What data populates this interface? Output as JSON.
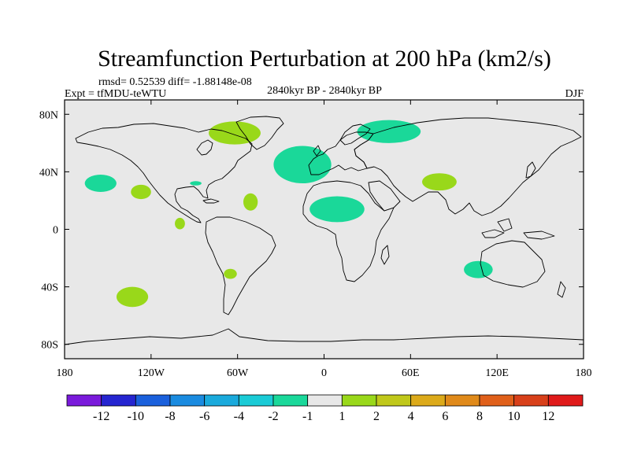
{
  "chart_data": {
    "type": "heatmap",
    "title": "Streamfunction Perturbation at 200 hPa (km2/s)",
    "stats_text": "rmsd= 0.52539 diff= -1.88148e-08",
    "experiment": "Expt = tfMDU-teWTU",
    "period": "2840kyr BP - 2840kyr BP",
    "season": "DJF",
    "xlim": [
      -180,
      180
    ],
    "ylim": [
      -90,
      90
    ],
    "x_ticks": [
      {
        "value": -180,
        "label": "180"
      },
      {
        "value": -120,
        "label": "120W"
      },
      {
        "value": -60,
        "label": "60W"
      },
      {
        "value": 0,
        "label": "0"
      },
      {
        "value": 60,
        "label": "60E"
      },
      {
        "value": 120,
        "label": "120E"
      },
      {
        "value": 180,
        "label": "180"
      }
    ],
    "y_ticks": [
      {
        "value": 80,
        "label": "80N"
      },
      {
        "value": 40,
        "label": "40N"
      },
      {
        "value": 0,
        "label": "0"
      },
      {
        "value": -40,
        "label": "40S"
      },
      {
        "value": -80,
        "label": "80S"
      }
    ],
    "background_value_range": [
      -1,
      1
    ],
    "regions": [
      {
        "lon": -62,
        "lat": 67,
        "rlon": 18,
        "rlat": 8,
        "bin": "1 to 2",
        "color": "#99d81a"
      },
      {
        "lon": -155,
        "lat": 32,
        "rlon": 11,
        "rlat": 6,
        "bin": "-2 to -1",
        "color": "#1ad899"
      },
      {
        "lon": -127,
        "lat": 26,
        "rlon": 7,
        "rlat": 5,
        "bin": "1 to 2",
        "color": "#99d81a"
      },
      {
        "lon": -89,
        "lat": 32,
        "rlon": 4,
        "rlat": 1.5,
        "bin": "-2 to -1",
        "color": "#1ad899"
      },
      {
        "lon": -51,
        "lat": 19,
        "rlon": 5,
        "rlat": 6,
        "bin": "1 to 2",
        "color": "#99d81a"
      },
      {
        "lon": -100,
        "lat": 4,
        "rlon": 3.5,
        "rlat": 4,
        "bin": "1 to 2",
        "color": "#99d81a"
      },
      {
        "lon": -65,
        "lat": -31,
        "rlon": 4.5,
        "rlat": 3.5,
        "bin": "1 to 2",
        "color": "#99d81a"
      },
      {
        "lon": -133,
        "lat": -47,
        "rlon": 11,
        "rlat": 7,
        "bin": "1 to 2",
        "color": "#99d81a"
      },
      {
        "lon": -15,
        "lat": 45,
        "rlon": 20,
        "rlat": 13,
        "bin": "-2 to -1",
        "color": "#1ad899"
      },
      {
        "lon": 45,
        "lat": 68,
        "rlon": 22,
        "rlat": 8,
        "bin": "-2 to -1",
        "color": "#1ad899"
      },
      {
        "lon": 9,
        "lat": 14,
        "rlon": 19,
        "rlat": 9,
        "bin": "-2 to -1",
        "color": "#1ad899"
      },
      {
        "lon": 80,
        "lat": 33,
        "rlon": 12,
        "rlat": 6,
        "bin": "1 to 2",
        "color": "#99d81a"
      },
      {
        "lon": 107,
        "lat": -28,
        "rlon": 10,
        "rlat": 6,
        "bin": "-2 to -1",
        "color": "#1ad899"
      }
    ],
    "colorbar": {
      "colors": [
        "#7a1adb",
        "#2525d0",
        "#1a60dc",
        "#1a8be0",
        "#1aaadc",
        "#1acbd6",
        "#1ad89a",
        "#e8e8e8",
        "#99d81a",
        "#c0c81a",
        "#dcaa1a",
        "#e08a1a",
        "#e0601a",
        "#d8401a",
        "#e01a1a"
      ],
      "labels": [
        "-12",
        "-10",
        "-8",
        "-6",
        "-4",
        "-2",
        "-1",
        "1",
        "2",
        "4",
        "6",
        "8",
        "10",
        "12"
      ]
    }
  }
}
